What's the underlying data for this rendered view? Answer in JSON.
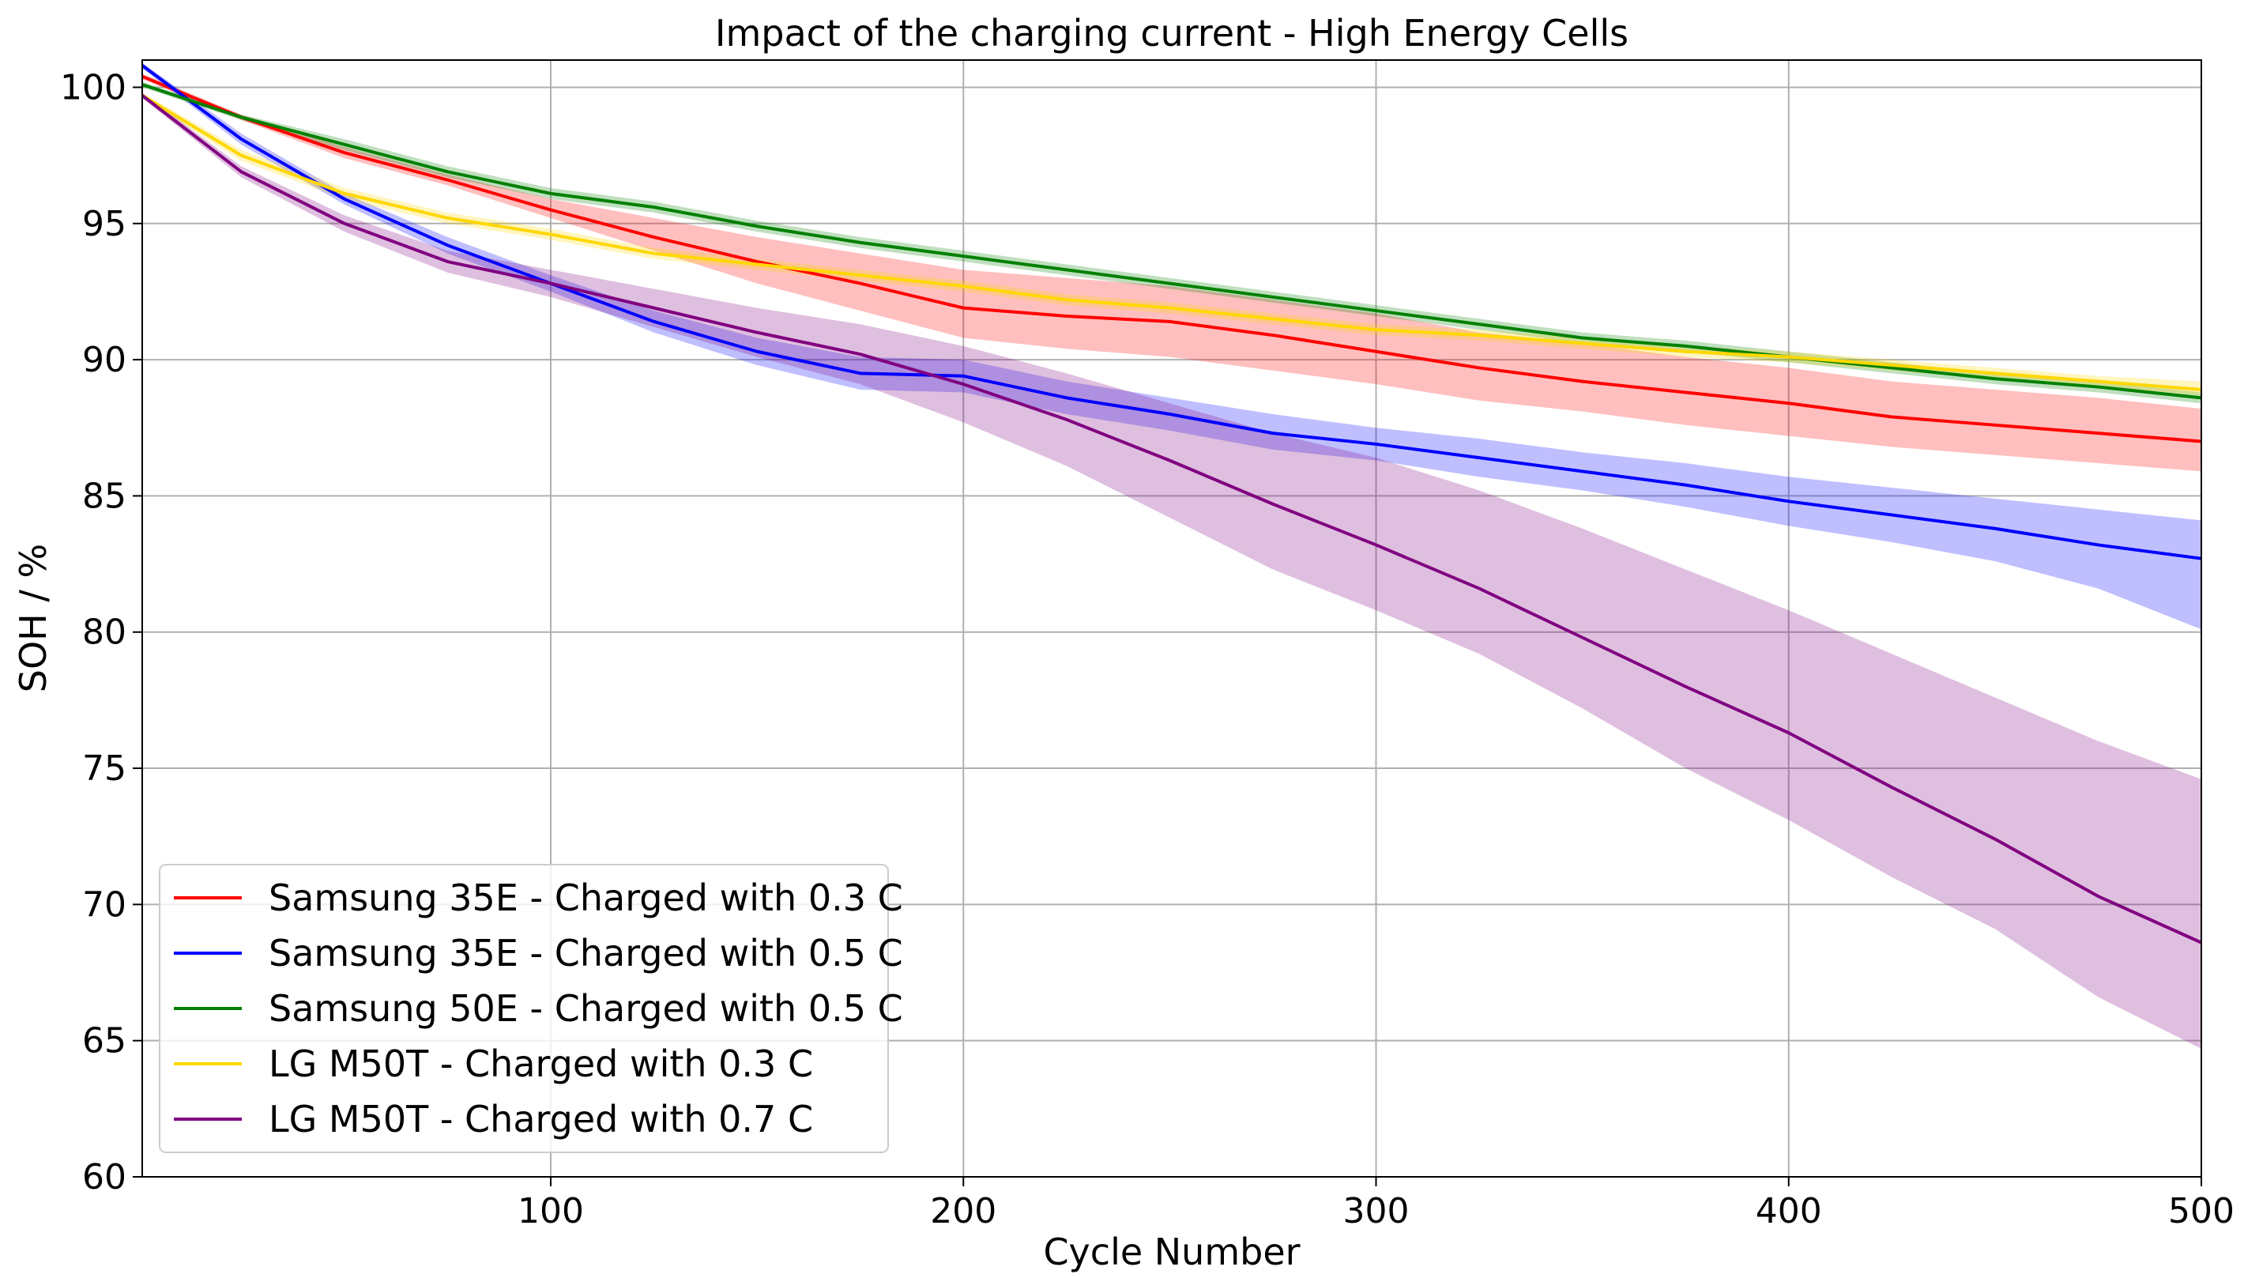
{
  "chart_data": {
    "type": "line",
    "title": "Impact of the charging current - High Energy Cells",
    "xlabel": "Cycle Number",
    "ylabel": "SOH / %",
    "xlim": [
      1,
      500
    ],
    "ylim": [
      60,
      101
    ],
    "xticks": [
      100,
      200,
      300,
      400,
      500
    ],
    "xtick_labels": [
      "100",
      "200",
      "300",
      "400",
      "500"
    ],
    "yticks": [
      60,
      65,
      70,
      75,
      80,
      85,
      90,
      95,
      100
    ],
    "ytick_labels": [
      "60",
      "65",
      "70",
      "75",
      "80",
      "85",
      "90",
      "95",
      "100"
    ],
    "grid": true,
    "legend_position": "lower-left",
    "x": [
      1,
      25,
      50,
      75,
      100,
      125,
      150,
      175,
      200,
      225,
      250,
      275,
      300,
      325,
      350,
      375,
      400,
      425,
      450,
      475,
      500
    ],
    "series": [
      {
        "name": "Samsung 35E - Charged with 0.3 C",
        "color": "#ff0000",
        "values": [
          100.4,
          98.9,
          97.6,
          96.6,
          95.5,
          94.5,
          93.6,
          92.8,
          91.9,
          91.6,
          91.4,
          90.9,
          90.3,
          89.7,
          89.2,
          88.8,
          88.4,
          87.9,
          87.6,
          87.3,
          87.0
        ],
        "upper": [
          100.5,
          99.0,
          97.8,
          96.8,
          95.9,
          95.2,
          94.5,
          93.9,
          93.3,
          93.0,
          92.7,
          92.2,
          91.7,
          91.0,
          90.6,
          90.1,
          89.7,
          89.2,
          88.9,
          88.6,
          88.2
        ],
        "lower": [
          100.3,
          98.8,
          97.4,
          96.4,
          95.2,
          94.0,
          92.8,
          91.8,
          90.8,
          90.4,
          90.1,
          89.6,
          89.1,
          88.5,
          88.1,
          87.6,
          87.2,
          86.8,
          86.5,
          86.2,
          85.9
        ]
      },
      {
        "name": "Samsung 35E - Charged with 0.5 C",
        "color": "#0000ff",
        "values": [
          100.8,
          98.1,
          95.9,
          94.2,
          92.8,
          91.4,
          90.3,
          89.5,
          89.4,
          88.6,
          88.0,
          87.3,
          86.9,
          86.4,
          85.9,
          85.4,
          84.8,
          84.3,
          83.8,
          83.2,
          82.7
        ],
        "upper": [
          100.9,
          98.3,
          96.1,
          94.5,
          93.1,
          91.8,
          90.8,
          90.1,
          90.0,
          89.2,
          88.6,
          88.0,
          87.5,
          87.1,
          86.6,
          86.2,
          85.7,
          85.3,
          84.9,
          84.5,
          84.1
        ],
        "lower": [
          100.7,
          97.9,
          95.7,
          93.9,
          92.5,
          91.0,
          89.8,
          88.9,
          88.8,
          88.0,
          87.4,
          86.7,
          86.3,
          85.7,
          85.2,
          84.6,
          83.9,
          83.3,
          82.6,
          81.6,
          80.1
        ]
      },
      {
        "name": "Samsung 50E - Charged with 0.5 C",
        "color": "#008000",
        "values": [
          100.1,
          98.9,
          97.9,
          96.9,
          96.1,
          95.6,
          94.9,
          94.3,
          93.8,
          93.3,
          92.8,
          92.3,
          91.8,
          91.3,
          90.8,
          90.5,
          90.1,
          89.7,
          89.3,
          89.0,
          88.6
        ],
        "upper": [
          100.2,
          99.0,
          98.1,
          97.1,
          96.3,
          95.8,
          95.1,
          94.5,
          94.0,
          93.5,
          93.0,
          92.5,
          92.0,
          91.5,
          91.0,
          90.7,
          90.3,
          89.9,
          89.5,
          89.2,
          88.8
        ],
        "lower": [
          100.0,
          98.8,
          97.7,
          96.7,
          95.9,
          95.4,
          94.7,
          94.1,
          93.6,
          93.1,
          92.6,
          92.1,
          91.6,
          91.1,
          90.6,
          90.3,
          89.9,
          89.5,
          89.1,
          88.8,
          88.4
        ]
      },
      {
        "name": "LG M50T - Charged with 0.3 C",
        "color": "#ffd700",
        "values": [
          99.7,
          97.5,
          96.1,
          95.2,
          94.6,
          93.9,
          93.5,
          93.1,
          92.7,
          92.2,
          91.9,
          91.5,
          91.1,
          90.9,
          90.6,
          90.3,
          90.1,
          89.8,
          89.5,
          89.2,
          88.9
        ],
        "upper": [
          99.8,
          97.7,
          96.3,
          95.4,
          94.8,
          94.1,
          93.7,
          93.3,
          92.9,
          92.4,
          92.1,
          91.7,
          91.3,
          91.1,
          90.8,
          90.5,
          90.3,
          90.0,
          89.7,
          89.4,
          89.2
        ],
        "lower": [
          99.6,
          97.3,
          95.9,
          95.0,
          94.4,
          93.7,
          93.3,
          92.9,
          92.5,
          92.0,
          91.7,
          91.3,
          90.9,
          90.7,
          90.4,
          90.1,
          89.9,
          89.6,
          89.3,
          89.0,
          88.7
        ]
      },
      {
        "name": "LG M50T - Charged with 0.7 C",
        "color": "#800080",
        "values": [
          99.7,
          96.9,
          95.0,
          93.6,
          92.8,
          91.9,
          91.0,
          90.2,
          89.1,
          87.8,
          86.3,
          84.7,
          83.2,
          81.6,
          79.8,
          78.0,
          76.3,
          74.3,
          72.4,
          70.3,
          68.6
        ],
        "upper": [
          99.8,
          97.1,
          95.3,
          94.0,
          93.3,
          92.6,
          91.9,
          91.3,
          90.5,
          89.5,
          88.4,
          87.3,
          86.4,
          85.2,
          83.8,
          82.3,
          80.8,
          79.2,
          77.6,
          76.0,
          74.6
        ],
        "lower": [
          99.6,
          96.7,
          94.7,
          93.2,
          92.3,
          91.2,
          90.1,
          89.1,
          87.7,
          86.1,
          84.2,
          82.3,
          80.8,
          79.2,
          77.2,
          75.0,
          73.1,
          71.0,
          69.1,
          66.6,
          64.7
        ]
      }
    ]
  }
}
